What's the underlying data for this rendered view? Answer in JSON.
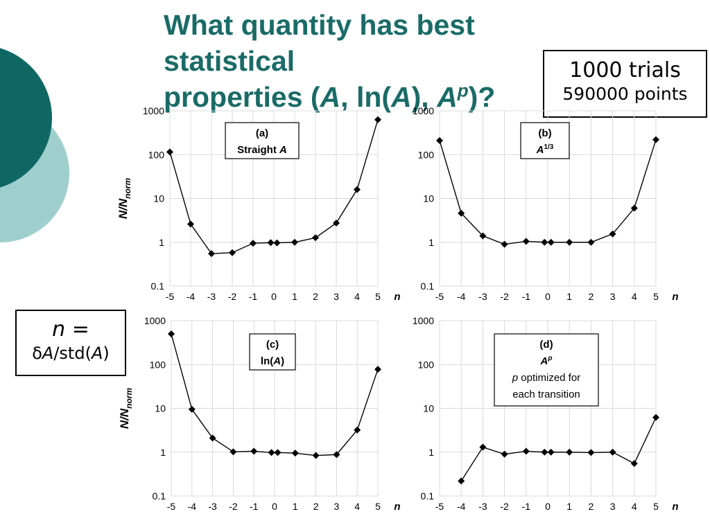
{
  "title": {
    "line1": "What quantity has best statistical",
    "line2_prefix": "properties (",
    "a1": "A",
    "sep1": ", ",
    "ln": "ln(",
    "a2": "A",
    "close": "), ",
    "a3": "A",
    "p_sup": "p",
    "end": ")?"
  },
  "trials_box": {
    "line1": "1000 trials",
    "line2": "590000 points"
  },
  "n_box": {
    "lhs": "n =",
    "delta": "δ",
    "a1": "A",
    "std": "/std(",
    "a2": "A",
    "close": ")"
  },
  "colors": {
    "title": "#1a6b67",
    "circle_dark": "#0f6764",
    "circle_light": "#9fcfcd",
    "grid": "#d9d9d9",
    "line": "#000000"
  },
  "shared_axes": {
    "x_ticks": [
      "-5",
      "-4",
      "-3",
      "-2",
      "-1",
      "0",
      "1",
      "2",
      "3",
      "4",
      "5"
    ],
    "x_label": "n",
    "y_ticks": [
      "0.1",
      "1",
      "10",
      "100",
      "1000"
    ],
    "y_label_main": "N/N",
    "y_label_sub": "norm"
  },
  "chart_data": [
    {
      "type": "line",
      "yscale": "log",
      "ylim": [
        0.1,
        1000
      ],
      "xlim": [
        -5,
        5
      ],
      "grid": true,
      "label_lines": [
        "(a)",
        "Straight A"
      ],
      "x": [
        -5,
        -4,
        -3,
        -2,
        -1,
        -0.15,
        0.15,
        1,
        2,
        3,
        4,
        5
      ],
      "y": [
        115,
        2.6,
        0.55,
        0.58,
        0.95,
        0.98,
        0.97,
        1.0,
        1.27,
        2.75,
        16,
        630
      ]
    },
    {
      "type": "line",
      "yscale": "log",
      "ylim": [
        0.1,
        1000
      ],
      "xlim": [
        -5,
        5
      ],
      "grid": true,
      "label_lines": [
        "(b)",
        "A1/3"
      ],
      "x": [
        -5,
        -4,
        -3,
        -2,
        -1,
        -0.15,
        0.15,
        1,
        2,
        3,
        4,
        5
      ],
      "y": [
        210,
        4.6,
        1.4,
        0.9,
        1.05,
        1.0,
        1.0,
        1.0,
        1.0,
        1.55,
        6.0,
        220
      ]
    },
    {
      "type": "line",
      "yscale": "log",
      "ylim": [
        0.1,
        1000
      ],
      "xlim": [
        -5,
        5
      ],
      "grid": true,
      "label_lines": [
        "(c)",
        "ln(A)"
      ],
      "x": [
        -5,
        -4,
        -3,
        -2,
        -1,
        -0.15,
        0.15,
        1,
        2,
        3,
        4,
        5
      ],
      "y": [
        500,
        9.5,
        2.1,
        1.02,
        1.05,
        0.98,
        0.98,
        0.95,
        0.84,
        0.88,
        3.2,
        78
      ]
    },
    {
      "type": "line",
      "yscale": "log",
      "ylim": [
        0.1,
        1000
      ],
      "xlim": [
        -5,
        5
      ],
      "grid": true,
      "label_lines": [
        "(d)",
        "Ap",
        "p optimized for",
        "each transition"
      ],
      "x": [
        -4,
        -3,
        -2,
        -1,
        -0.15,
        0.15,
        1,
        2,
        3,
        4,
        5
      ],
      "y": [
        0.22,
        1.3,
        0.9,
        1.05,
        1.0,
        1.0,
        1.0,
        0.98,
        1.0,
        0.55,
        6.2
      ]
    }
  ]
}
